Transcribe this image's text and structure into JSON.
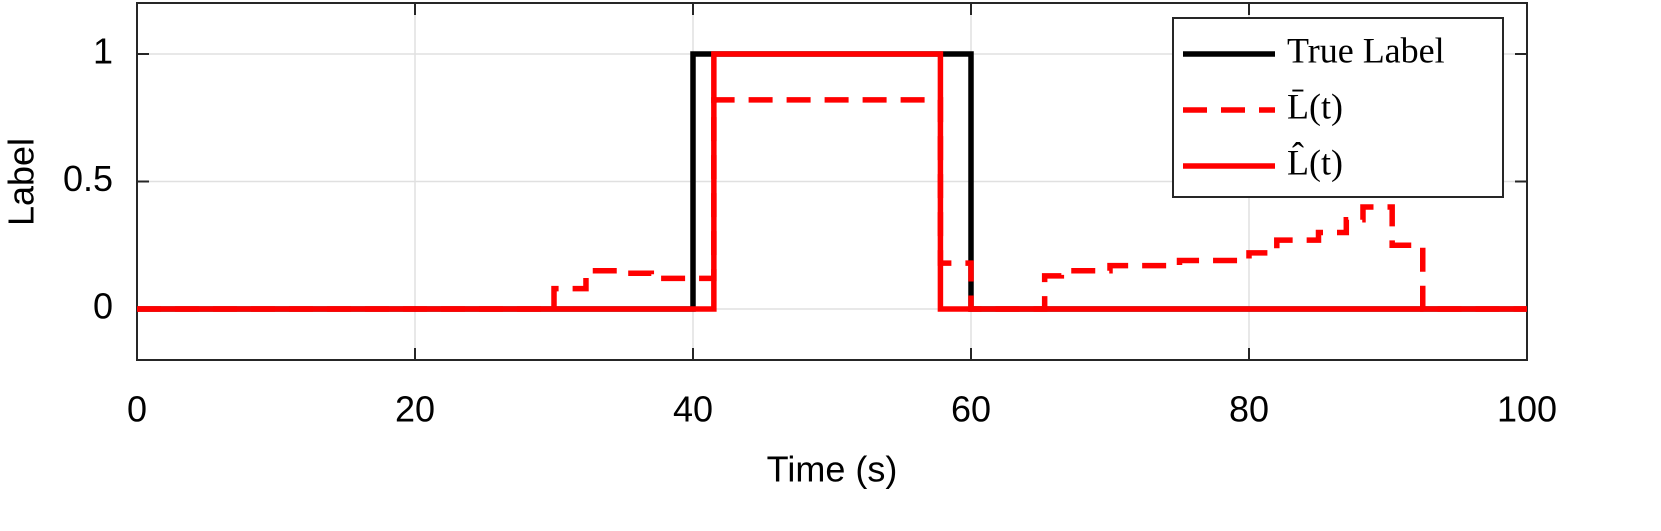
{
  "chart_data": {
    "type": "line",
    "xlabel": "Time (s)",
    "ylabel": "Label",
    "xlim": [
      0,
      100
    ],
    "xticks": [
      0,
      20,
      40,
      60,
      80,
      100
    ],
    "ylim": [
      -0.2,
      1.2
    ],
    "yticks": [
      0,
      0.5,
      1
    ],
    "grid": true,
    "legend": "northeast",
    "series": [
      {
        "name": "True Label",
        "color": "#000000",
        "linestyle": "solid",
        "x": [
          0,
          40,
          40,
          60,
          60,
          100
        ],
        "values": [
          0,
          0,
          1,
          1,
          0,
          0
        ]
      },
      {
        "name": "L̄(t)",
        "color": "#ff0000",
        "linestyle": "dashed",
        "x": [
          0,
          30,
          30,
          32.3,
          32.3,
          34.8,
          34.8,
          37,
          37,
          41.5,
          41.5,
          57.8,
          57.8,
          60,
          60,
          65.3,
          65.3,
          66.5,
          66.5,
          70,
          70,
          75,
          75,
          80,
          80,
          82,
          82,
          85,
          85,
          87,
          87,
          88.2,
          88.2,
          90.3,
          90.3,
          92.5,
          92.5,
          100
        ],
        "values": [
          0,
          0,
          0.08,
          0.08,
          0.15,
          0.15,
          0.14,
          0.14,
          0.12,
          0.12,
          0.82,
          0.82,
          0.18,
          0.18,
          0,
          0,
          0.13,
          0.13,
          0.15,
          0.15,
          0.17,
          0.17,
          0.19,
          0.19,
          0.22,
          0.22,
          0.27,
          0.27,
          0.3,
          0.3,
          0.35,
          0.35,
          0.4,
          0.4,
          0.25,
          0.25,
          0,
          0
        ]
      },
      {
        "name": "L̂(t)",
        "color": "#ff0000",
        "linestyle": "solid",
        "x": [
          0,
          41.5,
          41.5,
          57.8,
          57.8,
          100
        ],
        "values": [
          0,
          0,
          1,
          1,
          0,
          0
        ]
      }
    ]
  }
}
